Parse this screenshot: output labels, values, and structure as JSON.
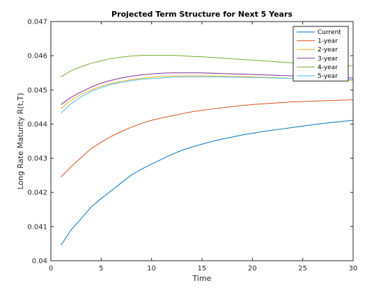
{
  "chart_data": {
    "type": "line",
    "title": "Projected Term Structure for Next 5 Years",
    "xlabel": "Time",
    "ylabel": "Long Rate Maturity R(t,T)",
    "xlim": [
      0,
      30
    ],
    "ylim": [
      0.04,
      0.047
    ],
    "xticks": [
      0,
      5,
      10,
      15,
      20,
      25,
      30
    ],
    "xtick_labels": [
      "0",
      "5",
      "10",
      "15",
      "20",
      "25",
      "30"
    ],
    "yticks": [
      0.04,
      0.041,
      0.042,
      0.043,
      0.044,
      0.045,
      0.046,
      0.047
    ],
    "ytick_labels": [
      "0.04",
      "0.041",
      "0.042",
      "0.043",
      "0.044",
      "0.045",
      "0.046",
      "0.047"
    ],
    "grid": false,
    "legend_position": "top-right",
    "x": [
      1,
      2,
      3,
      4,
      5,
      6,
      7,
      8,
      9,
      10,
      11,
      12,
      13,
      14,
      15,
      16,
      17,
      18,
      19,
      20,
      21,
      22,
      23,
      24,
      25,
      26,
      27,
      28,
      29,
      30
    ],
    "series": [
      {
        "name": "Current",
        "color": "#0072BD",
        "values": [
          0.04045,
          0.0409,
          0.04123,
          0.04157,
          0.04182,
          0.04205,
          0.04228,
          0.04251,
          0.04268,
          0.04283,
          0.04297,
          0.04311,
          0.04323,
          0.04333,
          0.04341,
          0.04349,
          0.04356,
          0.04362,
          0.04368,
          0.04373,
          0.04378,
          0.04382,
          0.04386,
          0.0439,
          0.04394,
          0.04398,
          0.04402,
          0.04405,
          0.04408,
          0.04411
        ]
      },
      {
        "name": "1-year",
        "color": "#D95319",
        "values": [
          0.04245,
          0.04275,
          0.04302,
          0.04328,
          0.04347,
          0.04364,
          0.04378,
          0.04391,
          0.04402,
          0.04411,
          0.04418,
          0.04424,
          0.0443,
          0.04436,
          0.0444,
          0.04444,
          0.04448,
          0.04451,
          0.04454,
          0.04457,
          0.04459,
          0.04461,
          0.04463,
          0.04465,
          0.04466,
          0.04467,
          0.04468,
          0.04469,
          0.0447,
          0.04471
        ]
      },
      {
        "name": "2-year",
        "color": "#EDB120",
        "values": [
          0.04445,
          0.0447,
          0.04487,
          0.045,
          0.04511,
          0.04519,
          0.04525,
          0.0453,
          0.04534,
          0.04537,
          0.04539,
          0.0454,
          0.04541,
          0.04541,
          0.04541,
          0.04541,
          0.0454,
          0.0454,
          0.04539,
          0.04538,
          0.04537,
          0.04536,
          0.04535,
          0.04534,
          0.04533,
          0.04532,
          0.04531,
          0.0453,
          0.04529,
          0.04528
        ]
      },
      {
        "name": "3-year",
        "color": "#7E2F8E",
        "values": [
          0.04457,
          0.04478,
          0.04494,
          0.04508,
          0.0452,
          0.04528,
          0.04535,
          0.0454,
          0.04544,
          0.04547,
          0.04549,
          0.0455,
          0.0455,
          0.0455,
          0.0455,
          0.04549,
          0.04548,
          0.04547,
          0.04546,
          0.04545,
          0.04544,
          0.04543,
          0.04542,
          0.04541,
          0.0454,
          0.04539,
          0.04538,
          0.04537,
          0.04536,
          0.04535
        ]
      },
      {
        "name": "4-year",
        "color": "#77AC30",
        "values": [
          0.04538,
          0.04556,
          0.04568,
          0.04578,
          0.04585,
          0.04592,
          0.04596,
          0.04599,
          0.04601,
          0.04601,
          0.04601,
          0.04601,
          0.046,
          0.04598,
          0.04597,
          0.04595,
          0.04593,
          0.04591,
          0.04589,
          0.04587,
          0.04585,
          0.04583,
          0.04581,
          0.04579,
          0.04577,
          0.04576,
          0.04574,
          0.04572,
          0.04571,
          0.0457
        ]
      },
      {
        "name": "5-year",
        "color": "#4DBEEE",
        "values": [
          0.04432,
          0.04459,
          0.0448,
          0.04495,
          0.04507,
          0.04516,
          0.04522,
          0.04527,
          0.04531,
          0.04533,
          0.04535,
          0.04537,
          0.04538,
          0.04538,
          0.04538,
          0.04538,
          0.04538,
          0.04537,
          0.04537,
          0.04536,
          0.04536,
          0.04535,
          0.04534,
          0.04534,
          0.04533,
          0.04533,
          0.04532,
          0.04531,
          0.04531,
          0.0453
        ]
      }
    ]
  }
}
